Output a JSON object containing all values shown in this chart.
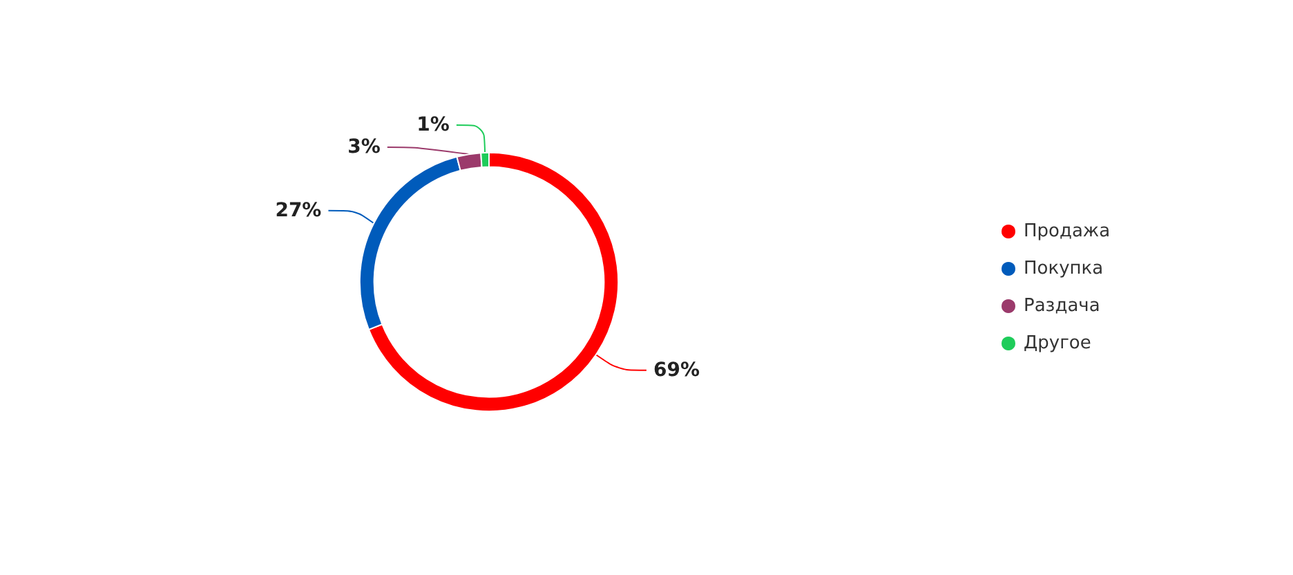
{
  "chart_data": {
    "type": "donut",
    "categories": [
      "Продажа",
      "Покупка",
      "Раздача",
      "Другое"
    ],
    "values": [
      69,
      27,
      3,
      1
    ],
    "colors": [
      "#ff0000",
      "#005bbb",
      "#9b3a6b",
      "#1ecc5a"
    ],
    "value_labels": [
      "69%",
      "27%",
      "3%",
      "1%"
    ],
    "legend": "right"
  }
}
